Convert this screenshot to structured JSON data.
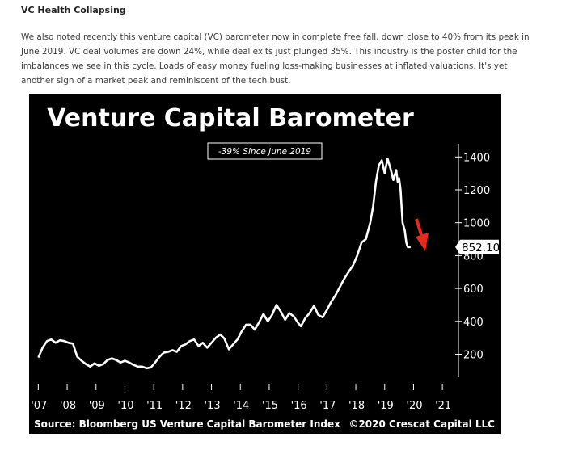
{
  "article": {
    "heading": "VC Health Collapsing",
    "paragraph": "We also noted recently this venture capital (VC) barometer now in complete free fall, down close to 40% from its peak in June 2019. VC deal volumes are down 24%, while deal exits just plunged 35%. This industry is the poster child for the imbalances we see in this cycle. Loads of easy money fueling loss-making businesses at inflated valuations. It's yet another sign of a market peak and reminiscent of the tech bust."
  },
  "chart_data": {
    "type": "line",
    "title": "Venture Capital Barometer",
    "annotation": "-39% Since June 2019",
    "source": "Source: Bloomberg US Venture Capital Barometer Index",
    "credit": "©2020 Crescat Capital LLC",
    "last_value_label": "852.10",
    "last_value": 852.1,
    "ylim": [
      60,
      1480
    ],
    "yticks": [
      200,
      400,
      600,
      800,
      1000,
      1200,
      1400
    ],
    "ytick_labels": [
      "200",
      "400",
      "600",
      "800",
      "1000",
      "1200",
      "1400"
    ],
    "xlim": [
      2006.85,
      2021.5
    ],
    "xticks": [
      2007,
      2008,
      2009,
      2010,
      2011,
      2012,
      2013,
      2014,
      2015,
      2016,
      2017,
      2018,
      2019,
      2020,
      2021
    ],
    "xtick_labels": [
      "'07",
      "'08",
      "'09",
      "'10",
      "'11",
      "'12",
      "'13",
      "'14",
      "'15",
      "'16",
      "'17",
      "'18",
      "'19",
      "'20",
      "'21"
    ],
    "colors": {
      "background": "#000000",
      "line": "#ffffff",
      "arrow": "#e8291c"
    },
    "series": [
      {
        "x": [
          2007.0,
          2007.15,
          2007.3,
          2007.45,
          2007.6,
          2007.75,
          2007.9,
          2008.05,
          2008.2,
          2008.35,
          2008.5,
          2008.65,
          2008.8,
          2008.95,
          2009.1,
          2009.25,
          2009.4,
          2009.55,
          2009.7,
          2009.85,
          2010.0,
          2010.15,
          2010.3,
          2010.45,
          2010.6,
          2010.75,
          2010.9,
          2011.05,
          2011.2,
          2011.35,
          2011.5,
          2011.65,
          2011.8,
          2011.95,
          2012.1,
          2012.25,
          2012.4,
          2012.55,
          2012.7,
          2012.85,
          2013.0,
          2013.15,
          2013.3,
          2013.45,
          2013.6,
          2013.75,
          2013.9,
          2014.05,
          2014.2,
          2014.35,
          2014.5,
          2014.65,
          2014.8,
          2014.95,
          2015.1,
          2015.25,
          2015.4,
          2015.55,
          2015.7,
          2015.85,
          2016.0,
          2016.1,
          2016.25,
          2016.4,
          2016.55,
          2016.7,
          2016.85,
          2017.0,
          2017.15,
          2017.3,
          2017.45,
          2017.6,
          2017.75,
          2017.9,
          2018.05,
          2018.2,
          2018.35,
          2018.5,
          2018.6,
          2018.7,
          2018.8,
          2018.9,
          2019.0,
          2019.1,
          2019.2,
          2019.3,
          2019.4,
          2019.45,
          2019.5,
          2019.55,
          2019.62,
          2019.7,
          2019.75,
          2019.8,
          2019.85,
          2019.9
        ],
        "y": [
          180,
          240,
          280,
          290,
          270,
          285,
          280,
          270,
          265,
          185,
          160,
          140,
          125,
          145,
          130,
          140,
          165,
          175,
          165,
          150,
          160,
          150,
          135,
          125,
          125,
          115,
          120,
          150,
          185,
          210,
          215,
          225,
          215,
          250,
          260,
          280,
          290,
          250,
          270,
          240,
          270,
          300,
          320,
          295,
          230,
          260,
          290,
          340,
          380,
          380,
          350,
          395,
          445,
          400,
          440,
          500,
          460,
          410,
          450,
          430,
          390,
          370,
          420,
          450,
          495,
          440,
          425,
          470,
          520,
          560,
          610,
          660,
          700,
          740,
          800,
          880,
          900,
          1000,
          1100,
          1250,
          1350,
          1380,
          1300,
          1390,
          1330,
          1260,
          1320,
          1250,
          1270,
          1200,
          1000,
          950,
          880,
          852.1,
          852.1,
          852.1
        ]
      }
    ]
  }
}
